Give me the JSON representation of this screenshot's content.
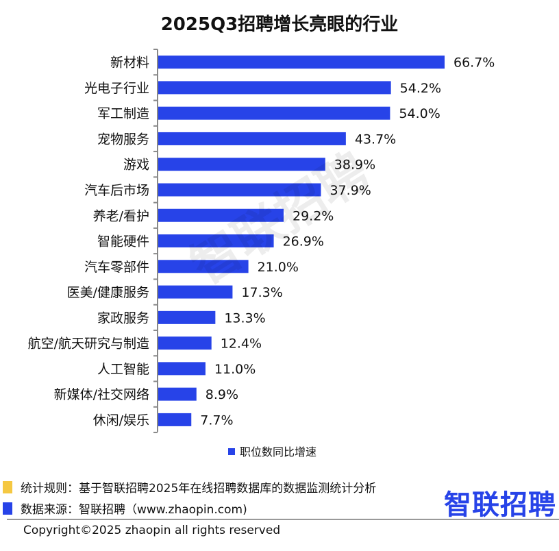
{
  "chart_data": {
    "type": "bar",
    "orientation": "horizontal",
    "title": "2025Q3招聘增长亮眼的行业",
    "categories": [
      "新材料",
      "光电子行业",
      "军工制造",
      "宠物服务",
      "游戏",
      "汽车后市场",
      "养老/看护",
      "智能硬件",
      "汽车零部件",
      "医美/健康服务",
      "家政服务",
      "航空/航天研究与制造",
      "人工智能",
      "新媒体/社交网络",
      "休闲/娱乐"
    ],
    "series": [
      {
        "name": "职位数同比增速",
        "values": [
          66.7,
          54.2,
          54.0,
          43.7,
          38.9,
          37.9,
          29.2,
          26.9,
          21.0,
          17.3,
          13.3,
          12.4,
          11.0,
          8.9,
          7.7
        ],
        "labels": [
          "66.7%",
          "54.2%",
          "54.0%",
          "43.7%",
          "38.9%",
          "37.9%",
          "29.2%",
          "26.9%",
          "21.0%",
          "17.3%",
          "13.3%",
          "12.4%",
          "11.0%",
          "8.9%",
          "7.7%"
        ]
      }
    ],
    "xlim": [
      0,
      66.7
    ],
    "grid": false,
    "legend_position": "bottom",
    "bar_color": "#2743e8"
  },
  "notes": {
    "rule": "统计规则：基于智联招聘2025年在线招聘数据库的数据监测统计分析",
    "source": "数据来源：智联招聘（www.zhaopin.com)",
    "rule_marker_color": "#f5c842",
    "source_marker_color": "#2743e8"
  },
  "logo": {
    "text": "智联招聘",
    "color": "#2743e8"
  },
  "watermark": "智联招聘",
  "footer": {
    "copyright": "Copyright©2025 zhaopin all rights reserved"
  }
}
